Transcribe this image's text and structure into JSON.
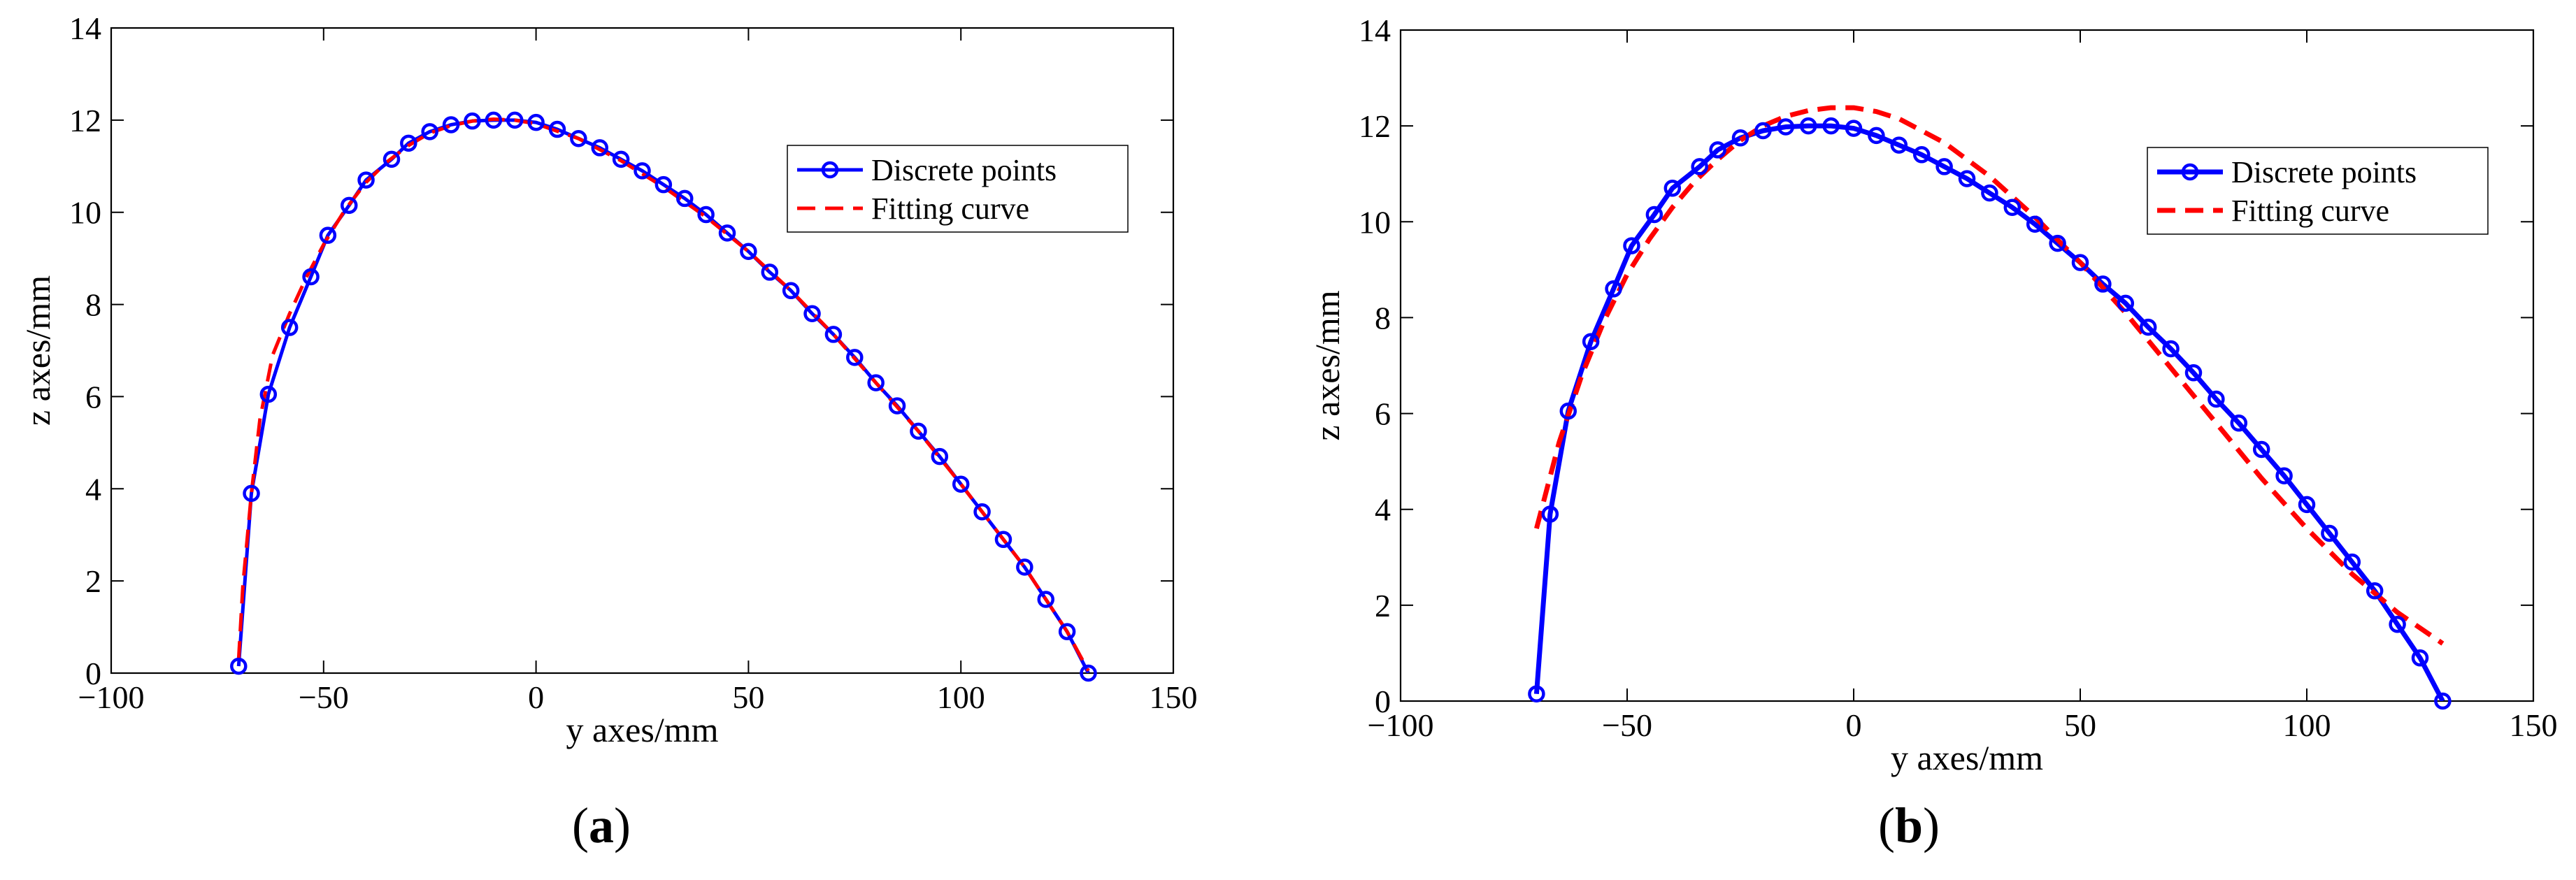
{
  "figure": {
    "colors": {
      "discrete": "#0000ff",
      "fitting": "#ff0000",
      "axes": "#000000",
      "background": "#ffffff"
    }
  },
  "chart_data": [
    {
      "id": "a",
      "type": "line",
      "panel_label": {
        "open": "(",
        "letter": "a",
        "close": ")"
      },
      "xlabel": "y axes/mm",
      "ylabel": "z axes/mm",
      "xlim": [
        -100,
        150
      ],
      "ylim": [
        0,
        14
      ],
      "xticks": [
        -100,
        -50,
        0,
        50,
        100,
        150
      ],
      "xtick_labels": [
        "−100",
        "−50",
        "0",
        "50",
        "100",
        "150"
      ],
      "yticks": [
        0,
        2,
        4,
        6,
        8,
        10,
        12,
        14
      ],
      "ytick_labels": [
        "0",
        "2",
        "4",
        "6",
        "8",
        "10",
        "12",
        "14"
      ],
      "grid": false,
      "legend": {
        "position": "top-right",
        "entries": [
          "Discrete points",
          "Fitting curve"
        ]
      },
      "series": [
        {
          "name": "Discrete points",
          "style": "solid-line-circle-markers",
          "x": [
            -70,
            -67,
            -63,
            -58,
            -53,
            -49,
            -44,
            -40,
            -34,
            -30,
            -25,
            -20,
            -15,
            -10,
            -5,
            0,
            5,
            10,
            15,
            20,
            25,
            30,
            35,
            40,
            45,
            50,
            55,
            60,
            65,
            70,
            75,
            80,
            85,
            90,
            95,
            100,
            105,
            110,
            115,
            120,
            125,
            130
          ],
          "y": [
            0.15,
            3.9,
            6.05,
            7.5,
            8.6,
            9.5,
            10.15,
            10.7,
            11.15,
            11.5,
            11.75,
            11.9,
            11.98,
            12.0,
            12.0,
            11.95,
            11.8,
            11.6,
            11.4,
            11.15,
            10.9,
            10.6,
            10.3,
            9.95,
            9.55,
            9.15,
            8.7,
            8.3,
            7.8,
            7.35,
            6.85,
            6.3,
            5.8,
            5.25,
            4.7,
            4.1,
            3.5,
            2.9,
            2.3,
            1.6,
            0.9,
            0.0
          ]
        },
        {
          "name": "Fitting curve",
          "style": "dashed-line",
          "x": [
            -70,
            -69,
            -67,
            -65,
            -62,
            -58,
            -54,
            -50,
            -45,
            -40,
            -35,
            -30,
            -25,
            -20,
            -15,
            -10,
            -5,
            0,
            10,
            20,
            30,
            40,
            50,
            60,
            70,
            80,
            90,
            100,
            110,
            115,
            120,
            125,
            130
          ],
          "y": [
            0.3,
            1.9,
            3.9,
            5.5,
            6.9,
            7.8,
            8.6,
            9.3,
            10.05,
            10.65,
            11.1,
            11.45,
            11.72,
            11.88,
            11.98,
            12.02,
            12.0,
            11.92,
            11.6,
            11.12,
            10.55,
            9.9,
            9.15,
            8.3,
            7.35,
            6.3,
            5.25,
            4.1,
            2.9,
            2.3,
            1.6,
            0.9,
            0.05
          ]
        }
      ]
    },
    {
      "id": "b",
      "type": "line",
      "panel_label": {
        "open": "(",
        "letter": "b",
        "close": ")"
      },
      "xlabel": "y axes/mm",
      "ylabel": "z axes/mm",
      "xlim": [
        -100,
        150
      ],
      "ylim": [
        0,
        14
      ],
      "xticks": [
        -100,
        -50,
        0,
        50,
        100,
        150
      ],
      "xtick_labels": [
        "−100",
        "−50",
        "0",
        "50",
        "100",
        "150"
      ],
      "yticks": [
        0,
        2,
        4,
        6,
        8,
        10,
        12,
        14
      ],
      "ytick_labels": [
        "0",
        "2",
        "4",
        "6",
        "8",
        "10",
        "12",
        "14"
      ],
      "grid": false,
      "legend": {
        "position": "top-right",
        "entries": [
          "Discrete points",
          "Fitting curve"
        ]
      },
      "series": [
        {
          "name": "Discrete points",
          "style": "solid-line-circle-markers",
          "x": [
            -70,
            -67,
            -63,
            -58,
            -53,
            -49,
            -44,
            -40,
            -34,
            -30,
            -25,
            -20,
            -15,
            -10,
            -5,
            0,
            5,
            10,
            15,
            20,
            25,
            30,
            35,
            40,
            45,
            50,
            55,
            60,
            65,
            70,
            75,
            80,
            85,
            90,
            95,
            100,
            105,
            110,
            115,
            120,
            125,
            130
          ],
          "y": [
            0.15,
            3.9,
            6.05,
            7.5,
            8.6,
            9.5,
            10.15,
            10.7,
            11.15,
            11.5,
            11.75,
            11.9,
            11.98,
            12.0,
            12.0,
            11.95,
            11.8,
            11.6,
            11.4,
            11.15,
            10.9,
            10.6,
            10.3,
            9.95,
            9.55,
            9.15,
            8.7,
            8.3,
            7.8,
            7.35,
            6.85,
            6.3,
            5.8,
            5.25,
            4.7,
            4.1,
            3.5,
            2.9,
            2.3,
            1.6,
            0.9,
            0.0
          ]
        },
        {
          "name": "Fitting curve",
          "style": "dashed-line",
          "x": [
            -70,
            -65,
            -60,
            -55,
            -50,
            -45,
            -40,
            -35,
            -30,
            -25,
            -20,
            -15,
            -10,
            -5,
            0,
            5,
            10,
            20,
            30,
            40,
            50,
            60,
            70,
            80,
            90,
            100,
            110,
            120,
            130
          ],
          "y": [
            3.6,
            5.4,
            6.8,
            7.95,
            8.9,
            9.65,
            10.3,
            10.85,
            11.3,
            11.7,
            12.0,
            12.2,
            12.32,
            12.38,
            12.38,
            12.3,
            12.15,
            11.65,
            10.95,
            10.1,
            9.15,
            8.1,
            6.95,
            5.8,
            4.65,
            3.6,
            2.65,
            1.85,
            1.2
          ]
        }
      ]
    }
  ]
}
